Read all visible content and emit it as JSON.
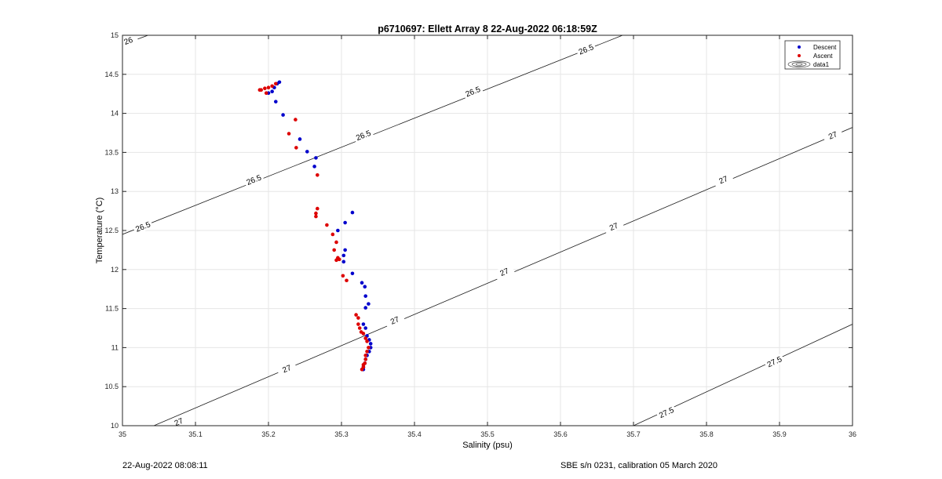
{
  "chart_data": {
    "type": "scatter",
    "title": "p6710697: Ellett Array 8 22-Aug-2022 06:18:59Z",
    "xlabel": "Salinity (psu)",
    "ylabel": "Temperature (°C)",
    "xlim": [
      35,
      36
    ],
    "ylim": [
      10,
      15
    ],
    "xticks": [
      "35",
      "35.1",
      "35.2",
      "35.3",
      "35.4",
      "35.5",
      "35.6",
      "35.7",
      "35.8",
      "35.9",
      "36"
    ],
    "yticks": [
      "10",
      "10.5",
      "11",
      "11.5",
      "12",
      "12.5",
      "13",
      "13.5",
      "14",
      "14.5",
      "15"
    ],
    "grid": true,
    "legend_position": "top-right",
    "legend": [
      "Descent",
      "Ascent",
      "data1"
    ],
    "series": [
      {
        "name": "Descent",
        "color": "#0000cc",
        "points": [
          [
            35.215,
            14.4
          ],
          [
            35.212,
            14.38
          ],
          [
            35.208,
            14.33
          ],
          [
            35.205,
            14.28
          ],
          [
            35.2,
            14.26
          ],
          [
            35.21,
            14.15
          ],
          [
            35.22,
            13.98
          ],
          [
            35.243,
            13.67
          ],
          [
            35.253,
            13.51
          ],
          [
            35.265,
            13.43
          ],
          [
            35.263,
            13.32
          ],
          [
            35.315,
            12.73
          ],
          [
            35.305,
            12.6
          ],
          [
            35.295,
            12.5
          ],
          [
            35.305,
            12.25
          ],
          [
            35.303,
            12.18
          ],
          [
            35.303,
            12.1
          ],
          [
            35.315,
            11.95
          ],
          [
            35.328,
            11.83
          ],
          [
            35.332,
            11.78
          ],
          [
            35.333,
            11.66
          ],
          [
            35.337,
            11.56
          ],
          [
            35.333,
            11.51
          ],
          [
            35.33,
            11.3
          ],
          [
            35.333,
            11.25
          ],
          [
            35.335,
            11.15
          ],
          [
            35.338,
            11.1
          ],
          [
            35.34,
            11.05
          ],
          [
            35.34,
            11.0
          ],
          [
            35.338,
            10.95
          ],
          [
            35.335,
            10.9
          ],
          [
            35.333,
            10.85
          ],
          [
            35.332,
            10.8
          ],
          [
            35.33,
            10.75
          ],
          [
            35.33,
            10.72
          ]
        ]
      },
      {
        "name": "Ascent",
        "color": "#dd0000",
        "points": [
          [
            35.21,
            14.38
          ],
          [
            35.205,
            14.35
          ],
          [
            35.2,
            14.33
          ],
          [
            35.195,
            14.32
          ],
          [
            35.19,
            14.3
          ],
          [
            35.188,
            14.3
          ],
          [
            35.197,
            14.26
          ],
          [
            35.237,
            13.92
          ],
          [
            35.228,
            13.74
          ],
          [
            35.238,
            13.56
          ],
          [
            35.267,
            13.21
          ],
          [
            35.267,
            12.78
          ],
          [
            35.265,
            12.72
          ],
          [
            35.265,
            12.68
          ],
          [
            35.28,
            12.57
          ],
          [
            35.288,
            12.45
          ],
          [
            35.293,
            12.35
          ],
          [
            35.29,
            12.25
          ],
          [
            35.295,
            12.15
          ],
          [
            35.297,
            12.13
          ],
          [
            35.293,
            12.12
          ],
          [
            35.302,
            11.92
          ],
          [
            35.307,
            11.86
          ],
          [
            35.32,
            11.42
          ],
          [
            35.323,
            11.38
          ],
          [
            35.323,
            11.3
          ],
          [
            35.325,
            11.25
          ],
          [
            35.327,
            11.2
          ],
          [
            35.33,
            11.18
          ],
          [
            35.333,
            11.12
          ],
          [
            35.335,
            11.08
          ],
          [
            35.337,
            11.0
          ],
          [
            35.335,
            10.95
          ],
          [
            35.333,
            10.9
          ],
          [
            35.333,
            10.85
          ],
          [
            35.332,
            10.8
          ],
          [
            35.33,
            10.78
          ],
          [
            35.33,
            10.75
          ],
          [
            35.328,
            10.72
          ]
        ]
      }
    ],
    "contours": [
      {
        "label": "26",
        "points": [
          [
            35.0,
            14.88
          ],
          [
            35.035,
            15.0
          ]
        ],
        "label_positions": [
          [
            35.008,
            14.93
          ]
        ]
      },
      {
        "label": "26.5",
        "points": [
          [
            35.0,
            12.45
          ],
          [
            35.685,
            15.0
          ]
        ],
        "label_positions": [
          [
            35.028,
            12.55
          ],
          [
            35.18,
            13.15
          ],
          [
            35.33,
            13.72
          ],
          [
            35.48,
            14.28
          ],
          [
            35.635,
            14.82
          ]
        ]
      },
      {
        "label": "27",
        "points": [
          [
            35.043,
            10.0
          ],
          [
            36.0,
            13.82
          ]
        ],
        "label_positions": [
          [
            35.077,
            10.05
          ],
          [
            35.225,
            10.73
          ],
          [
            35.373,
            11.35
          ],
          [
            35.523,
            11.97
          ],
          [
            35.673,
            12.55
          ],
          [
            35.823,
            13.15
          ],
          [
            35.973,
            13.72
          ]
        ]
      },
      {
        "label": "27.5",
        "points": [
          [
            35.7,
            10.0
          ],
          [
            36.0,
            11.3
          ]
        ],
        "label_positions": [
          [
            35.745,
            10.17
          ],
          [
            35.893,
            10.82
          ]
        ]
      }
    ]
  },
  "footer": {
    "timestamp": "22-Aug-2022 08:08:11",
    "calibration": "SBE s/n 0231, calibration 05 March 2020"
  }
}
